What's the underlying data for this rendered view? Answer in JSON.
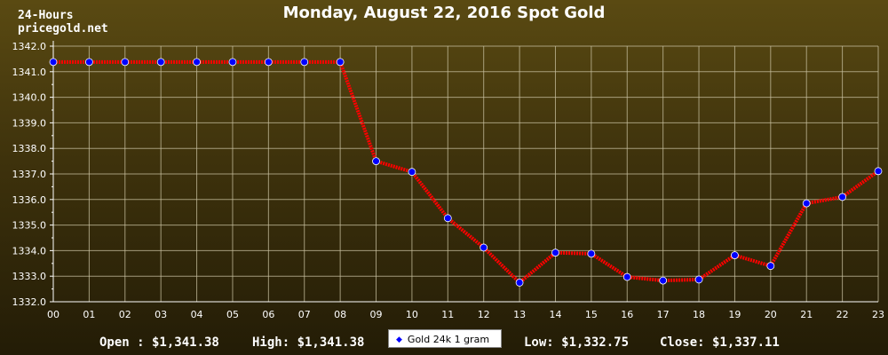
{
  "header": {
    "range_label": "24-Hours",
    "site": "pricegold.net"
  },
  "chart_data": {
    "type": "line",
    "title": "Monday, August 22, 2016 Spot Gold",
    "categories": [
      "00",
      "01",
      "02",
      "03",
      "04",
      "05",
      "06",
      "07",
      "08",
      "09",
      "10",
      "11",
      "12",
      "13",
      "14",
      "15",
      "16",
      "17",
      "18",
      "19",
      "20",
      "21",
      "22",
      "23"
    ],
    "series": [
      {
        "name": "Gold 24k 1 gram",
        "values": [
          1341.38,
          1341.38,
          1341.38,
          1341.38,
          1341.38,
          1341.38,
          1341.38,
          1341.38,
          1341.38,
          1337.5,
          1337.08,
          1335.27,
          1334.12,
          1332.75,
          1333.92,
          1333.88,
          1332.97,
          1332.83,
          1332.87,
          1333.82,
          1333.4,
          1335.85,
          1336.1,
          1337.11
        ]
      }
    ],
    "ylim": [
      1332.0,
      1342.0
    ],
    "yticks": [
      "1332.0",
      "1333.0",
      "1334.0",
      "1335.0",
      "1336.0",
      "1337.0",
      "1338.0",
      "1339.0",
      "1340.0",
      "1341.0",
      "1342.0"
    ],
    "grid": true,
    "legend_position": "bottom-center",
    "colors": {
      "line": "#ff0000",
      "marker": "#0000ff",
      "grid": "#c8c0a0",
      "axis": "#ffffff"
    }
  },
  "stats": {
    "open": "Open : $1,341.38",
    "high": "High: $1,341.38",
    "low": "Low: $1,332.75",
    "close": "Close: $1,337.11"
  }
}
